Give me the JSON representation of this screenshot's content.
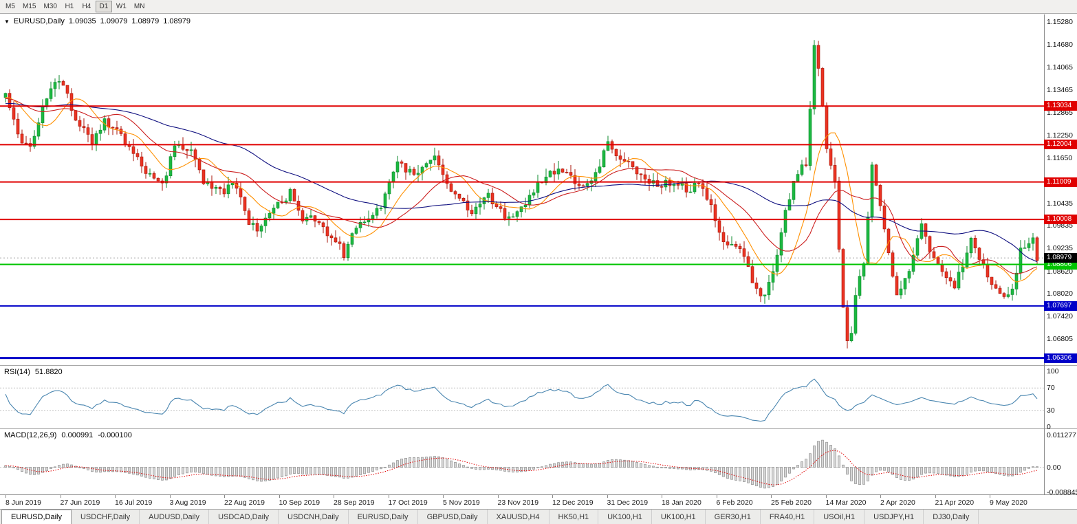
{
  "toolbar": {
    "timeframes": [
      {
        "label": "M5",
        "active": false
      },
      {
        "label": "M15",
        "active": false
      },
      {
        "label": "M30",
        "active": false
      },
      {
        "label": "H1",
        "active": false
      },
      {
        "label": "H4",
        "active": false
      },
      {
        "label": "D1",
        "active": true
      },
      {
        "label": "W1",
        "active": false
      },
      {
        "label": "MN",
        "active": false
      }
    ]
  },
  "chart_header": {
    "dropdown_icon": "▼",
    "symbol": "EURUSD,Daily",
    "open": "1.09035",
    "high": "1.09079",
    "low": "1.08979",
    "close": "1.08979"
  },
  "price_axis": {
    "ticks": [
      "1.15280",
      "1.14680",
      "1.14065",
      "1.13465",
      "1.12865",
      "1.12250",
      "1.11650",
      "1.10435",
      "1.09835",
      "1.09235",
      "1.08620",
      "1.08020",
      "1.07420",
      "1.06805"
    ]
  },
  "levels": [
    {
      "label": "1.13034",
      "price": 1.13034,
      "color": "#e00000",
      "width": 2
    },
    {
      "label": "1.12004",
      "price": 1.12004,
      "color": "#e00000",
      "width": 2
    },
    {
      "label": "1.11009",
      "price": 1.11009,
      "color": "#e00000",
      "width": 2
    },
    {
      "label": "1.10008",
      "price": 1.10008,
      "color": "#e00000",
      "width": 2
    },
    {
      "label": "1.08806",
      "price": 1.08806,
      "color": "#00c400",
      "width": 2
    },
    {
      "label": "1.07697",
      "price": 1.07697,
      "color": "#0000c8",
      "width": 2
    },
    {
      "label": "1.06306",
      "price": 1.06306,
      "color": "#0000c8",
      "width": 3
    }
  ],
  "current_price": {
    "label": "1.08979",
    "price": 1.08979,
    "bg": "#000000"
  },
  "rsi_panel": {
    "name": "RSI(14)",
    "value": "51.8820",
    "ticks": [
      {
        "value": 100,
        "label": "100"
      },
      {
        "value": 70,
        "label": "70"
      },
      {
        "value": 30,
        "label": "30"
      },
      {
        "value": 0,
        "label": "0"
      }
    ],
    "guides": [
      70,
      30
    ],
    "line_color": "#4a86b0",
    "ylim": [
      -2.5,
      109.9
    ]
  },
  "macd_panel": {
    "name": "MACD(12,26,9)",
    "macd_value": "0.000991",
    "signal_value": "-0.000100",
    "ticks": [
      {
        "value": 0.011277,
        "label": "0.011277"
      },
      {
        "value": 0,
        "label": "0.00"
      },
      {
        "value": -0.008845,
        "label": "-0.008845"
      }
    ],
    "ylim": [
      -0.009569,
      0.013458
    ],
    "hist_fill": "#d6d6d6",
    "hist_stroke": "#8e8e8e",
    "signal_color": "#e00000"
  },
  "date_axis": {
    "labels": [
      "8 Jun 2019",
      "27 Jun 2019",
      "16 Jul 2019",
      "3 Aug 2019",
      "22 Aug 2019",
      "10 Sep 2019",
      "28 Sep 2019",
      "17 Oct 2019",
      "5 Nov 2019",
      "23 Nov 2019",
      "12 Dec 2019",
      "31 Dec 2019",
      "18 Jan 2020",
      "6 Feb 2020",
      "25 Feb 2020",
      "14 Mar 2020",
      "2 Apr 2020",
      "21 Apr 2020",
      "9 May 2020"
    ]
  },
  "tabs": [
    {
      "label": "EURUSD,Daily",
      "active": true
    },
    {
      "label": "USDCHF,Daily",
      "active": false
    },
    {
      "label": "AUDUSD,Daily",
      "active": false
    },
    {
      "label": "USDCAD,Daily",
      "active": false
    },
    {
      "label": "USDCNH,Daily",
      "active": false
    },
    {
      "label": "EURUSD,Daily",
      "active": false
    },
    {
      "label": "GBPUSD,Daily",
      "active": false
    },
    {
      "label": "XAUUSD,H4",
      "active": false
    },
    {
      "label": "HK50,H1",
      "active": false
    },
    {
      "label": "UK100,H1",
      "active": false
    },
    {
      "label": "UK100,H1",
      "active": false
    },
    {
      "label": "GER30,H1",
      "active": false
    },
    {
      "label": "FRA40,H1",
      "active": false
    },
    {
      "label": "USOil,H1",
      "active": false
    },
    {
      "label": "USDJPY,H1",
      "active": false
    },
    {
      "label": "DJ30,Daily",
      "active": false
    }
  ],
  "chart_data": {
    "type": "candlestick",
    "symbol": "EURUSD",
    "timeframe": "Daily",
    "count": 251,
    "ylim": [
      1.06116,
      1.15482
    ],
    "noise": 0.0011,
    "up_color": "#1cb841",
    "up_border": "#0e8a2e",
    "down_color": "#ea3323",
    "down_border": "#a81408",
    "moving_averages": [
      {
        "period": 10,
        "color": "#ff9000"
      },
      {
        "period": 20,
        "color": "#cc2020"
      },
      {
        "period": 50,
        "color": "#101080"
      }
    ],
    "anchors": [
      [
        0,
        1.133
      ],
      [
        4,
        1.1198
      ],
      [
        6,
        1.1195
      ],
      [
        9,
        1.13
      ],
      [
        12,
        1.1378
      ],
      [
        14,
        1.1368
      ],
      [
        16,
        1.1285
      ],
      [
        21,
        1.121
      ],
      [
        24,
        1.1268
      ],
      [
        28,
        1.122
      ],
      [
        33,
        1.1142
      ],
      [
        38,
        1.1088
      ],
      [
        41,
        1.1198
      ],
      [
        45,
        1.1188
      ],
      [
        48,
        1.11
      ],
      [
        53,
        1.1078
      ],
      [
        56,
        1.1092
      ],
      [
        59,
        1.0992
      ],
      [
        61,
        1.097
      ],
      [
        65,
        1.103
      ],
      [
        69,
        1.1072
      ],
      [
        72,
        1.1
      ],
      [
        74,
        1.1018
      ],
      [
        78,
        1.0962
      ],
      [
        81,
        1.093
      ],
      [
        82,
        1.0902
      ],
      [
        84,
        1.0962
      ],
      [
        88,
        1.1005
      ],
      [
        91,
        1.104
      ],
      [
        95,
        1.115
      ],
      [
        99,
        1.1122
      ],
      [
        104,
        1.1166
      ],
      [
        108,
        1.1072
      ],
      [
        113,
        1.1022
      ],
      [
        117,
        1.106
      ],
      [
        121,
        1.1012
      ],
      [
        124,
        1.1018
      ],
      [
        128,
        1.108
      ],
      [
        133,
        1.113
      ],
      [
        136,
        1.1118
      ],
      [
        140,
        1.1082
      ],
      [
        143,
        1.112
      ],
      [
        146,
        1.1212
      ],
      [
        149,
        1.1162
      ],
      [
        154,
        1.1122
      ],
      [
        158,
        1.1092
      ],
      [
        161,
        1.1102
      ],
      [
        165,
        1.1082
      ],
      [
        169,
        1.1093
      ],
      [
        172,
        1.1002
      ],
      [
        174,
        1.0945
      ],
      [
        178,
        1.0916
      ],
      [
        181,
        1.0842
      ],
      [
        183,
        1.0786
      ],
      [
        186,
        1.0852
      ],
      [
        189,
        1.1026
      ],
      [
        192,
        1.1132
      ],
      [
        194,
        1.114
      ],
      [
        196,
        1.1456
      ],
      [
        197,
        1.1408
      ],
      [
        199,
        1.1184
      ],
      [
        201,
        1.1096
      ],
      [
        203,
        1.076
      ],
      [
        204,
        1.067
      ],
      [
        205,
        1.07
      ],
      [
        206,
        1.08
      ],
      [
        208,
        1.089
      ],
      [
        210,
        1.1141
      ],
      [
        212,
        1.1031
      ],
      [
        214,
        1.0912
      ],
      [
        216,
        1.0791
      ],
      [
        219,
        1.0862
      ],
      [
        222,
        1.098
      ],
      [
        224,
        1.0912
      ],
      [
        227,
        1.0872
      ],
      [
        230,
        1.0822
      ],
      [
        232,
        1.0882
      ],
      [
        234,
        1.0955
      ],
      [
        236,
        1.0902
      ],
      [
        239,
        1.0834
      ],
      [
        241,
        1.0802
      ],
      [
        244,
        1.0805
      ],
      [
        246,
        1.0916
      ],
      [
        249,
        1.0949
      ],
      [
        250,
        1.0898
      ]
    ]
  }
}
